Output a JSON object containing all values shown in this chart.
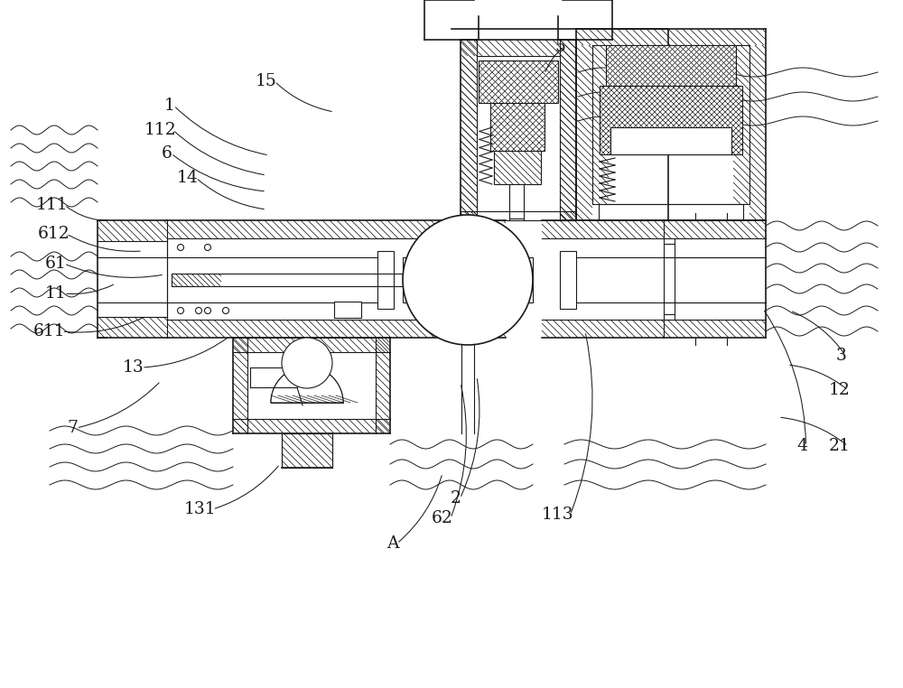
{
  "bg_color": "#ffffff",
  "lc": "#1a1a1a",
  "fig_w": 10.0,
  "fig_h": 7.62,
  "dpi": 100,
  "labels": [
    [
      "5",
      620,
      710,
      603,
      680
    ],
    [
      "15",
      295,
      672,
      370,
      638
    ],
    [
      "1",
      188,
      645,
      298,
      590
    ],
    [
      "112",
      178,
      618,
      295,
      568
    ],
    [
      "6",
      185,
      592,
      295,
      550
    ],
    [
      "14",
      208,
      565,
      295,
      530
    ],
    [
      "111",
      58,
      535,
      112,
      518
    ],
    [
      "612",
      60,
      503,
      158,
      484
    ],
    [
      "61",
      62,
      470,
      182,
      458
    ],
    [
      "11",
      62,
      437,
      128,
      448
    ],
    [
      "611",
      55,
      395,
      162,
      412
    ],
    [
      "13",
      148,
      355,
      255,
      390
    ],
    [
      "7",
      80,
      288,
      178,
      340
    ],
    [
      "131",
      222,
      198,
      310,
      248
    ],
    [
      "A",
      435,
      160,
      490,
      238
    ],
    [
      "62",
      490,
      188,
      510,
      338
    ],
    [
      "2",
      505,
      210,
      528,
      345
    ],
    [
      "113",
      618,
      192,
      648,
      395
    ],
    [
      "4",
      888,
      268,
      845,
      420
    ],
    [
      "3",
      932,
      368,
      875,
      418
    ],
    [
      "12",
      930,
      330,
      872,
      358
    ],
    [
      "21",
      930,
      268,
      862,
      300
    ]
  ]
}
